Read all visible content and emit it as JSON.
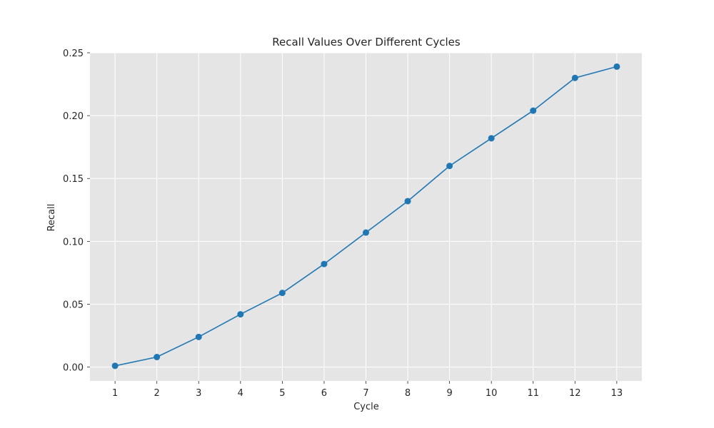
{
  "chart_data": {
    "type": "line",
    "title": "Recall Values Over Different Cycles",
    "xlabel": "Cycle",
    "ylabel": "Recall",
    "x": [
      1,
      2,
      3,
      4,
      5,
      6,
      7,
      8,
      9,
      10,
      11,
      12,
      13
    ],
    "x_tick_labels": [
      "1",
      "2",
      "3",
      "4",
      "5",
      "6",
      "7",
      "8",
      "9",
      "10",
      "11",
      "12",
      "13"
    ],
    "xlim": [
      0.4,
      13.6
    ],
    "ylim": [
      -0.011,
      0.25
    ],
    "y_ticks": [
      0.0,
      0.05,
      0.1,
      0.15,
      0.2,
      0.25
    ],
    "y_tick_labels": [
      "0.00",
      "0.05",
      "0.10",
      "0.15",
      "0.20",
      "0.25"
    ],
    "grid": true,
    "background_color": "#e5e5e5",
    "series": [
      {
        "color": "#1f77b4",
        "marker": "circle",
        "values": [
          0.001,
          0.008,
          0.024,
          0.042,
          0.059,
          0.082,
          0.107,
          0.132,
          0.16,
          0.182,
          0.204,
          0.23,
          0.239
        ]
      }
    ]
  }
}
